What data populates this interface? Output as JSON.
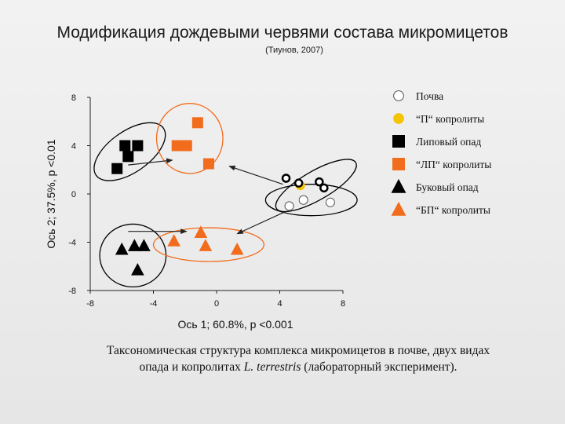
{
  "page": {
    "title": "Модификация дождевыми червями состава микромицетов",
    "subtitle": "(Тиунов, 2007)",
    "caption_line1": "Таксономическая структура комплекса микромицетов в почве, двух видах",
    "caption_line2_prefix": "опада и копролитах ",
    "caption_line2_italic": "L. terrestris",
    "caption_line2_suffix": " (лабораторный эксперимент)."
  },
  "chart_data": {
    "type": "scatter",
    "xlabel": "Ось 1; 60.8%, p <0.001",
    "ylabel": "Ось 2; 37.5%, p <0.01",
    "xlim": [
      -8,
      8
    ],
    "ylim": [
      -8,
      8
    ],
    "xticks": [
      "-8",
      "-4",
      "0",
      "4",
      "8"
    ],
    "yticks": [
      "8",
      "4",
      "0",
      "-4",
      "-8"
    ],
    "series": [
      {
        "name": "Почва",
        "marker": "circle",
        "color": "#ffffff",
        "stroke": "#555555",
        "points": [
          [
            4.6,
            -1.0
          ],
          [
            5.5,
            -0.5
          ],
          [
            7.2,
            -0.7
          ]
        ]
      },
      {
        "name": "“П“ копролиты",
        "marker": "circle",
        "color": "#f5c400",
        "stroke": "#f5c400",
        "points": [
          [
            5.3,
            0.7
          ]
        ]
      },
      {
        "name": "Липовый опад",
        "marker": "square",
        "color": "#000000",
        "stroke": "#000000",
        "points": [
          [
            -5.8,
            4.0
          ],
          [
            -5.0,
            4.0
          ],
          [
            -5.6,
            3.1
          ],
          [
            -6.3,
            2.1
          ]
        ]
      },
      {
        "name": "“ЛП“ копролиты",
        "marker": "square",
        "color": "#f26c1d",
        "stroke": "#f26c1d",
        "points": [
          [
            -1.2,
            5.9
          ],
          [
            -2.5,
            4.0
          ],
          [
            -1.9,
            4.0
          ],
          [
            -0.5,
            2.5
          ]
        ]
      },
      {
        "name": "Буковый опад",
        "marker": "triangle",
        "color": "#000000",
        "stroke": "#000000",
        "points": [
          [
            -6.0,
            -4.6
          ],
          [
            -5.2,
            -4.3
          ],
          [
            -4.6,
            -4.3
          ],
          [
            -5.0,
            -6.3
          ]
        ]
      },
      {
        "name": "“БП“ копролиты",
        "marker": "triangle",
        "color": "#f26c1d",
        "stroke": "#f26c1d",
        "points": [
          [
            -2.7,
            -3.9
          ],
          [
            -1.0,
            -3.2
          ],
          [
            -0.7,
            -4.3
          ],
          [
            1.3,
            -4.6
          ]
        ]
      }
    ],
    "extra_markers": [
      {
        "marker": "ring",
        "color": "#000000",
        "points": [
          [
            4.4,
            1.3
          ],
          [
            6.5,
            1.0
          ],
          [
            6.8,
            0.5
          ],
          [
            5.2,
            0.9
          ]
        ]
      }
    ],
    "ellipses": [
      {
        "color": "#000000",
        "cx": -5.5,
        "cy": 3.5,
        "rx": 2.6,
        "ry": 1.7,
        "angle": -35
      },
      {
        "color": "#f26c1d",
        "cx": -1.7,
        "cy": 4.6,
        "rx": 2.1,
        "ry": 2.9,
        "angle": 0
      },
      {
        "color": "#000000",
        "cx": 6.3,
        "cy": 0.7,
        "rx": 2.9,
        "ry": 1.2,
        "angle": -30
      },
      {
        "color": "#000000",
        "cx": 6.0,
        "cy": -0.5,
        "rx": 2.9,
        "ry": 1.3,
        "angle": 0
      },
      {
        "color": "#000000",
        "cx": -5.3,
        "cy": -5.1,
        "rx": 2.1,
        "ry": 2.6,
        "angle": 0
      },
      {
        "color": "#f26c1d",
        "cx": -0.5,
        "cy": -4.2,
        "rx": 3.5,
        "ry": 1.4,
        "angle": 0
      }
    ],
    "arrows": [
      {
        "from": [
          -5.6,
          2.4
        ],
        "to": [
          -2.8,
          2.8
        ]
      },
      {
        "from": [
          4.2,
          0.8
        ],
        "to": [
          0.8,
          2.3
        ]
      },
      {
        "from": [
          -5.6,
          -3.1
        ],
        "to": [
          -1.9,
          -3.1
        ]
      },
      {
        "from": [
          4.3,
          -1.5
        ],
        "to": [
          1.3,
          -3.3
        ]
      }
    ],
    "grid": false,
    "legend_position": "right"
  }
}
